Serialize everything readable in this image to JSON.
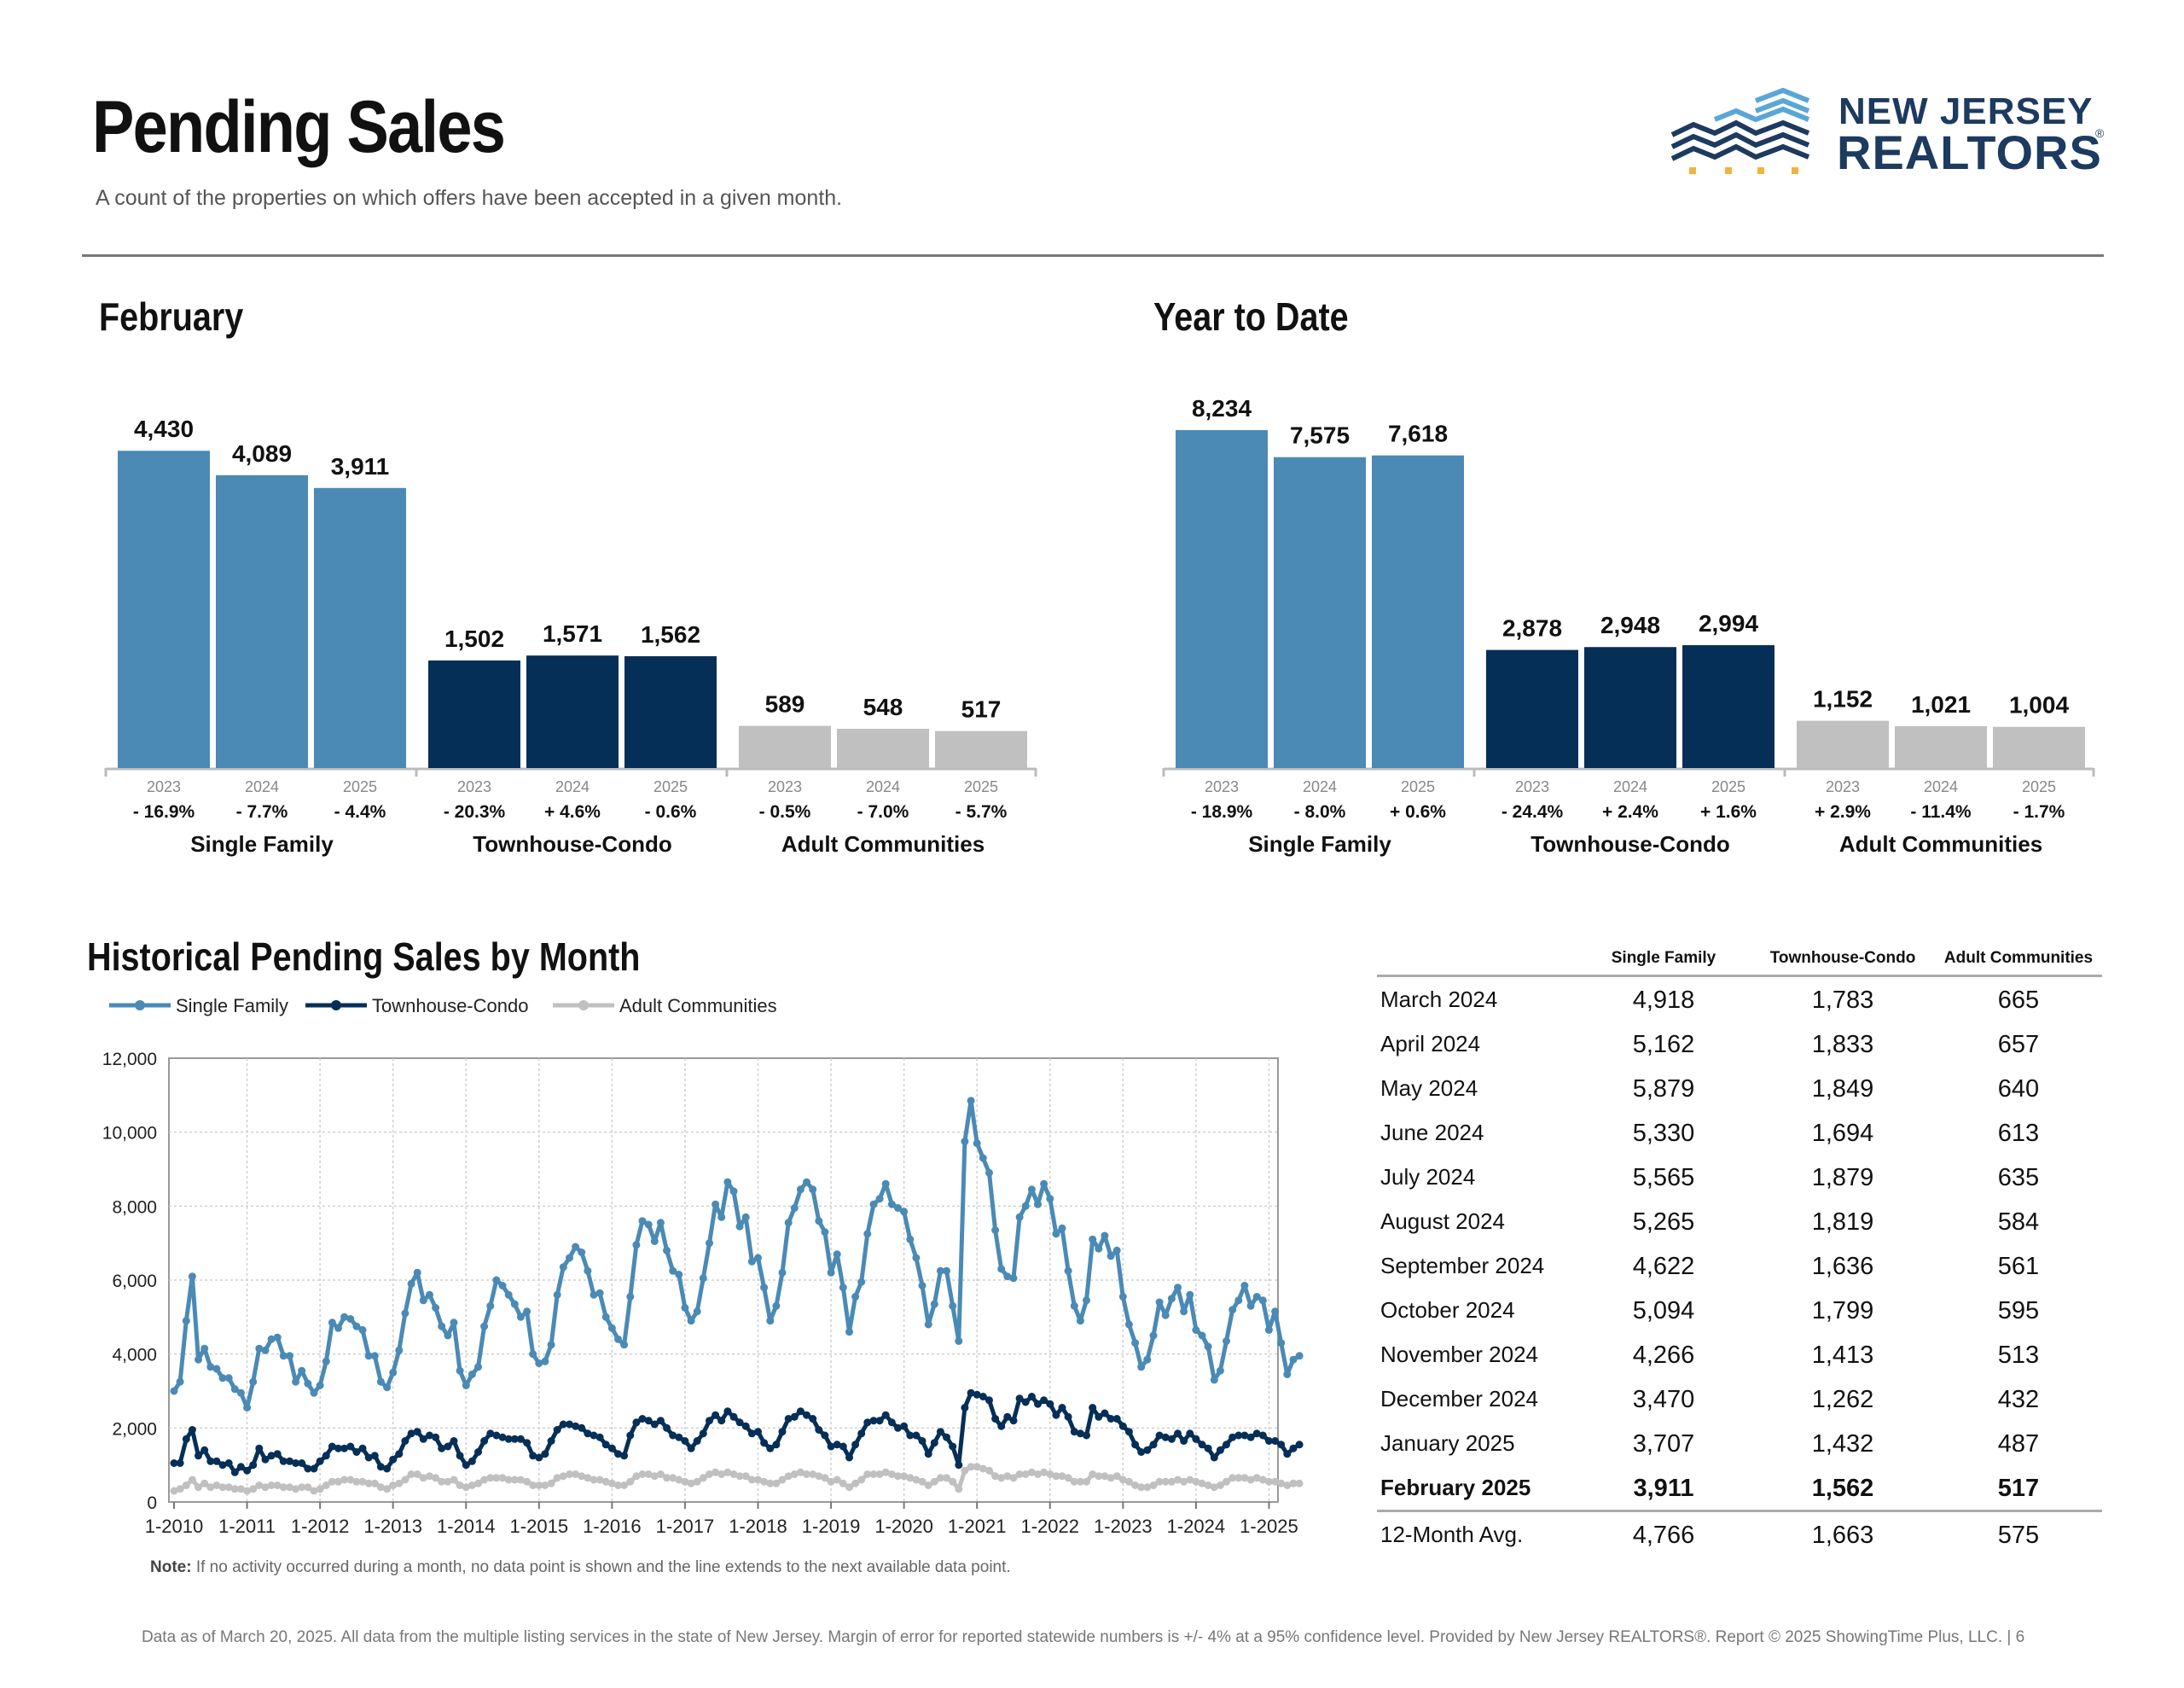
{
  "header": {
    "title": "Pending Sales",
    "subtitle": "A count of the properties on which offers have been accepted in a given month."
  },
  "logo": {
    "line1": "NEW JERSEY",
    "line2": "REALTORS",
    "reg": "®"
  },
  "colors": {
    "single_family": "#4a8ab5",
    "townhouse_condo": "#062f57",
    "adult_communities": "#c0c0c0"
  },
  "sections": {
    "month_title": "February",
    "ytd_title": "Year to Date",
    "history_title": "Historical Pending Sales by Month"
  },
  "chart_data": [
    {
      "type": "bar",
      "id": "february",
      "title": "February",
      "groups": [
        "Single Family",
        "Townhouse-Condo",
        "Adult Communities"
      ],
      "categories": [
        "2023",
        "2024",
        "2025"
      ],
      "series": [
        {
          "name": "Single Family",
          "values": [
            4430,
            4089,
            3911
          ],
          "labels": [
            "4,430",
            "4,089",
            "3,911"
          ],
          "changes": [
            "- 16.9%",
            "- 7.7%",
            "- 4.4%"
          ]
        },
        {
          "name": "Townhouse-Condo",
          "values": [
            1502,
            1571,
            1562
          ],
          "labels": [
            "1,502",
            "1,571",
            "1,562"
          ],
          "changes": [
            "- 20.3%",
            "+ 4.6%",
            "- 0.6%"
          ]
        },
        {
          "name": "Adult Communities",
          "values": [
            589,
            548,
            517
          ],
          "labels": [
            "589",
            "548",
            "517"
          ],
          "changes": [
            "- 0.5%",
            "- 7.0%",
            "- 5.7%"
          ]
        }
      ]
    },
    {
      "type": "bar",
      "id": "ytd",
      "title": "Year to Date",
      "groups": [
        "Single Family",
        "Townhouse-Condo",
        "Adult Communities"
      ],
      "categories": [
        "2023",
        "2024",
        "2025"
      ],
      "series": [
        {
          "name": "Single Family",
          "values": [
            8234,
            7575,
            7618
          ],
          "labels": [
            "8,234",
            "7,575",
            "7,618"
          ],
          "changes": [
            "- 18.9%",
            "- 8.0%",
            "+ 0.6%"
          ]
        },
        {
          "name": "Townhouse-Condo",
          "values": [
            2878,
            2948,
            2994
          ],
          "labels": [
            "2,878",
            "2,948",
            "2,994"
          ],
          "changes": [
            "- 24.4%",
            "+ 2.4%",
            "+ 1.6%"
          ]
        },
        {
          "name": "Adult Communities",
          "values": [
            1152,
            1021,
            1004
          ],
          "labels": [
            "1,152",
            "1,021",
            "1,004"
          ],
          "changes": [
            "+ 2.9%",
            "- 11.4%",
            "- 1.7%"
          ]
        }
      ]
    },
    {
      "type": "line",
      "id": "history",
      "title": "Historical Pending Sales by Month",
      "x_ticks": [
        "1-2010",
        "1-2011",
        "1-2012",
        "1-2013",
        "1-2014",
        "1-2015",
        "1-2016",
        "1-2017",
        "1-2018",
        "1-2019",
        "1-2020",
        "1-2021",
        "1-2022",
        "1-2023",
        "1-2024",
        "1-2025"
      ],
      "y_ticks": [
        "0",
        "2,000",
        "4,000",
        "6,000",
        "8,000",
        "10,000",
        "12,000"
      ],
      "ylim": [
        0,
        12000
      ],
      "grid": true,
      "legend": "top-left",
      "x_start": "2010-01",
      "x_end": "2025-02",
      "series": [
        {
          "name": "Single Family",
          "values": [
            3000,
            3250,
            4900,
            6100,
            3850,
            4150,
            3650,
            3600,
            3350,
            3350,
            3050,
            2950,
            2550,
            3250,
            4150,
            4100,
            4400,
            4450,
            3950,
            3950,
            3250,
            3550,
            3200,
            2950,
            3150,
            3800,
            4850,
            4700,
            5000,
            4950,
            4750,
            4650,
            3950,
            3950,
            3250,
            3100,
            3500,
            4100,
            5100,
            5900,
            6200,
            5450,
            5600,
            5250,
            4750,
            4500,
            4850,
            3550,
            3150,
            3450,
            3650,
            4750,
            5300,
            6000,
            5850,
            5600,
            5350,
            5000,
            5150,
            4000,
            3750,
            3800,
            4250,
            5600,
            6350,
            6600,
            6900,
            6750,
            6250,
            5600,
            5650,
            5000,
            4700,
            4400,
            4250,
            5550,
            6950,
            7600,
            7500,
            7050,
            7550,
            6800,
            6250,
            6150,
            5250,
            4900,
            5150,
            6050,
            7000,
            8050,
            7700,
            8650,
            8400,
            7450,
            7700,
            6500,
            6600,
            5800,
            4900,
            5300,
            6200,
            7550,
            7950,
            8450,
            8650,
            8450,
            7600,
            7300,
            6200,
            6700,
            5800,
            4600,
            5550,
            5950,
            7250,
            8050,
            8200,
            8600,
            8050,
            7950,
            7850,
            7100,
            6600,
            5850,
            4800,
            5350,
            6250,
            6250,
            5300,
            4350,
            9750,
            10850,
            9700,
            9300,
            8900,
            7350,
            6300,
            6100,
            6050,
            7700,
            8000,
            8450,
            8050,
            8600,
            8200,
            7250,
            7400,
            6250,
            5300,
            4900,
            5450,
            7100,
            6850,
            7200,
            6650,
            6800,
            5550,
            4800,
            4300,
            3650,
            3850,
            4500,
            5400,
            5050,
            5500,
            5800,
            5150,
            5600,
            4650,
            4500,
            4200,
            3300,
            3550,
            4350,
            5200,
            5450,
            5850,
            5300,
            5550,
            5450,
            4650,
            5150,
            4300,
            3450,
            3850,
            3950
          ]
        },
        {
          "name": "Townhouse-Condo",
          "values": [
            1050,
            1050,
            1700,
            1950,
            1250,
            1400,
            1100,
            1100,
            1000,
            1050,
            800,
            950,
            850,
            1000,
            1450,
            1150,
            1250,
            1300,
            1100,
            1100,
            1050,
            1050,
            900,
            900,
            1100,
            1250,
            1500,
            1450,
            1450,
            1500,
            1350,
            1450,
            1200,
            1250,
            950,
            900,
            1150,
            1300,
            1650,
            1850,
            1900,
            1700,
            1800,
            1750,
            1450,
            1500,
            1650,
            1250,
            1000,
            1100,
            1350,
            1650,
            1850,
            1800,
            1750,
            1700,
            1700,
            1700,
            1600,
            1250,
            1200,
            1300,
            1650,
            1950,
            2100,
            2100,
            2050,
            2000,
            1850,
            1800,
            1750,
            1550,
            1450,
            1300,
            1250,
            1800,
            2150,
            2250,
            2200,
            2100,
            2200,
            2000,
            1800,
            1750,
            1650,
            1450,
            1650,
            1850,
            2200,
            2350,
            2200,
            2450,
            2300,
            2150,
            2050,
            1850,
            1900,
            1600,
            1450,
            1550,
            1900,
            2250,
            2300,
            2450,
            2350,
            2250,
            1950,
            1800,
            1500,
            1550,
            1500,
            1200,
            1550,
            1850,
            2150,
            2200,
            2200,
            2350,
            2150,
            2000,
            2050,
            1800,
            1800,
            1650,
            1300,
            1600,
            1900,
            1750,
            1500,
            1000,
            2550,
            2950,
            2900,
            2850,
            2750,
            2250,
            2050,
            2300,
            2200,
            2800,
            2700,
            2850,
            2650,
            2750,
            2650,
            2350,
            2550,
            2300,
            1900,
            1850,
            1800,
            2550,
            2300,
            2400,
            2250,
            2250,
            2050,
            1900,
            1550,
            1350,
            1400,
            1550,
            1800,
            1750,
            1700,
            1850,
            1650,
            1850,
            1700,
            1550,
            1450,
            1200,
            1400,
            1550,
            1750,
            1800,
            1800,
            1750,
            1850,
            1800,
            1650,
            1650,
            1550,
            1300,
            1450,
            1550
          ]
        },
        {
          "name": "Adult Communities",
          "values": [
            300,
            350,
            450,
            600,
            400,
            500,
            400,
            450,
            400,
            400,
            350,
            350,
            300,
            350,
            450,
            400,
            450,
            450,
            400,
            400,
            350,
            400,
            400,
            300,
            350,
            450,
            550,
            550,
            600,
            600,
            550,
            550,
            500,
            500,
            400,
            350,
            450,
            500,
            600,
            750,
            750,
            650,
            700,
            650,
            550,
            550,
            600,
            450,
            400,
            450,
            500,
            600,
            650,
            650,
            650,
            600,
            600,
            600,
            550,
            450,
            450,
            450,
            500,
            650,
            700,
            750,
            750,
            700,
            650,
            600,
            600,
            550,
            500,
            450,
            450,
            550,
            700,
            750,
            750,
            700,
            750,
            650,
            650,
            600,
            550,
            500,
            550,
            650,
            750,
            800,
            750,
            800,
            750,
            700,
            700,
            600,
            600,
            550,
            500,
            500,
            600,
            700,
            750,
            800,
            750,
            750,
            700,
            650,
            550,
            600,
            500,
            400,
            500,
            600,
            750,
            750,
            750,
            800,
            750,
            700,
            700,
            650,
            600,
            550,
            450,
            550,
            650,
            650,
            550,
            350,
            850,
            950,
            950,
            900,
            850,
            700,
            650,
            700,
            650,
            750,
            750,
            800,
            750,
            800,
            750,
            700,
            700,
            650,
            550,
            550,
            550,
            750,
            700,
            700,
            650,
            700,
            600,
            550,
            450,
            400,
            400,
            450,
            550,
            550,
            550,
            600,
            550,
            600,
            550,
            500,
            450,
            400,
            450,
            550,
            650,
            650,
            650,
            600,
            650,
            600,
            550,
            550,
            500,
            450,
            500,
            500
          ]
        }
      ]
    }
  ],
  "table": {
    "headers": [
      "Single Family",
      "Townhouse-Condo",
      "Adult Communities"
    ],
    "rows": [
      {
        "month": "March 2024",
        "sf": "4,918",
        "tc": "1,783",
        "ac": "665"
      },
      {
        "month": "April 2024",
        "sf": "5,162",
        "tc": "1,833",
        "ac": "657"
      },
      {
        "month": "May 2024",
        "sf": "5,879",
        "tc": "1,849",
        "ac": "640"
      },
      {
        "month": "June 2024",
        "sf": "5,330",
        "tc": "1,694",
        "ac": "613"
      },
      {
        "month": "July 2024",
        "sf": "5,565",
        "tc": "1,879",
        "ac": "635"
      },
      {
        "month": "August 2024",
        "sf": "5,265",
        "tc": "1,819",
        "ac": "584"
      },
      {
        "month": "September 2024",
        "sf": "4,622",
        "tc": "1,636",
        "ac": "561"
      },
      {
        "month": "October 2024",
        "sf": "5,094",
        "tc": "1,799",
        "ac": "595"
      },
      {
        "month": "November 2024",
        "sf": "4,266",
        "tc": "1,413",
        "ac": "513"
      },
      {
        "month": "December 2024",
        "sf": "3,470",
        "tc": "1,262",
        "ac": "432"
      },
      {
        "month": "January 2025",
        "sf": "3,707",
        "tc": "1,432",
        "ac": "487"
      },
      {
        "month": "February 2025",
        "sf": "3,911",
        "tc": "1,562",
        "ac": "517"
      }
    ],
    "avg": {
      "month": "12-Month Avg.",
      "sf": "4,766",
      "tc": "1,663",
      "ac": "575"
    }
  },
  "note": {
    "label": "Note:",
    "text": " If no activity occurred during a month, no data point is shown and the line extends to the next available data point."
  },
  "footer": "Data as of March 20, 2025. All data from the multiple listing services in the state of New Jersey. Margin of error for reported statewide numbers is +/- 4% at a 95% confidence level. Provided by New Jersey REALTORS®. Report © 2025 ShowingTime Plus, LLC. | 6"
}
